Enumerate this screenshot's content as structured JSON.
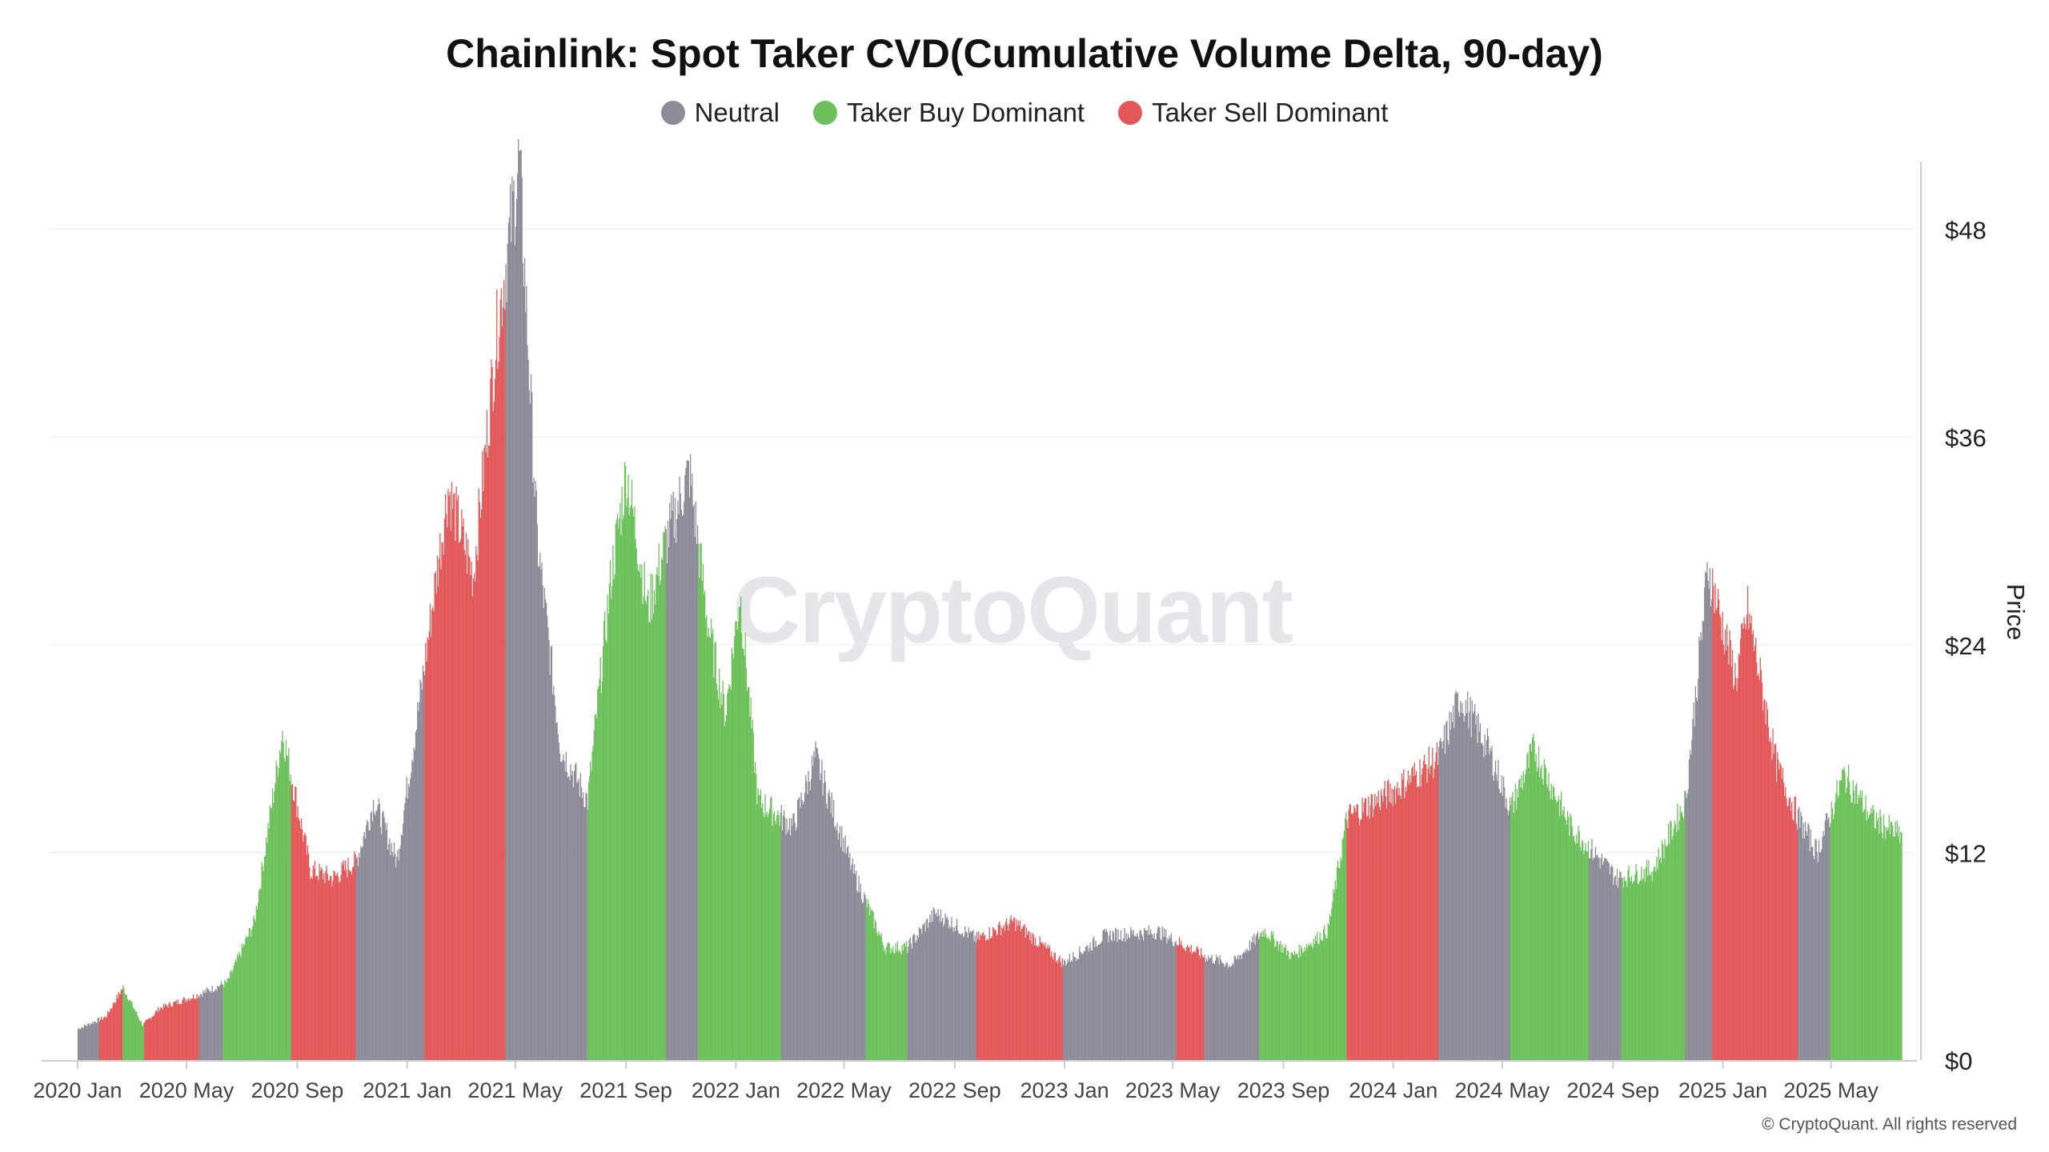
{
  "chart_data": {
    "type": "bar",
    "title": "Chainlink: Spot Taker CVD(Cumulative Volume Delta, 90-day)",
    "legend": [
      {
        "name": "Neutral",
        "color": "#8d8b98"
      },
      {
        "name": "Taker Buy Dominant",
        "color": "#6cc15a"
      },
      {
        "name": "Taker Sell Dominant",
        "color": "#e35858"
      }
    ],
    "legend_position": "top-center",
    "ylabel": "Price",
    "y_axis_side": "right",
    "ylim": [
      0,
      52
    ],
    "yticks": [
      0,
      12,
      24,
      36,
      48
    ],
    "ytick_labels": [
      "$0",
      "$12",
      "$24",
      "$36",
      "$48"
    ],
    "xticks": [
      "2020 Jan",
      "2020 May",
      "2020 Sep",
      "2021 Jan",
      "2021 May",
      "2021 Sep",
      "2022 Jan",
      "2022 May",
      "2022 Sep",
      "2023 Jan",
      "2023 May",
      "2023 Sep",
      "2024 Jan",
      "2024 May",
      "2024 Sep",
      "2025 Jan",
      "2025 May"
    ],
    "x_range_months": [
      "2019-12",
      "2025-07"
    ],
    "grid": true,
    "regimes": [
      {
        "start": "2020-01-01",
        "end": "2020-01-25",
        "state": "neutral"
      },
      {
        "start": "2020-01-25",
        "end": "2020-02-20",
        "state": "sell"
      },
      {
        "start": "2020-02-20",
        "end": "2020-03-15",
        "state": "buy"
      },
      {
        "start": "2020-03-15",
        "end": "2020-04-20",
        "state": "sell"
      },
      {
        "start": "2020-04-20",
        "end": "2020-05-15",
        "state": "sell"
      },
      {
        "start": "2020-05-15",
        "end": "2020-06-10",
        "state": "neutral"
      },
      {
        "start": "2020-06-10",
        "end": "2020-08-25",
        "state": "buy"
      },
      {
        "start": "2020-08-25",
        "end": "2020-11-05",
        "state": "sell"
      },
      {
        "start": "2020-11-05",
        "end": "2021-01-20",
        "state": "neutral"
      },
      {
        "start": "2021-01-20",
        "end": "2021-04-20",
        "state": "sell"
      },
      {
        "start": "2021-04-20",
        "end": "2021-07-20",
        "state": "neutral"
      },
      {
        "start": "2021-07-20",
        "end": "2021-10-15",
        "state": "buy"
      },
      {
        "start": "2021-10-15",
        "end": "2021-11-20",
        "state": "neutral"
      },
      {
        "start": "2021-11-20",
        "end": "2022-01-25",
        "state": "buy"
      },
      {
        "start": "2022-01-25",
        "end": "2022-02-20",
        "state": "buy"
      },
      {
        "start": "2022-02-20",
        "end": "2022-05-25",
        "state": "neutral"
      },
      {
        "start": "2022-05-25",
        "end": "2022-07-10",
        "state": "buy"
      },
      {
        "start": "2022-07-10",
        "end": "2022-09-25",
        "state": "neutral"
      },
      {
        "start": "2022-09-25",
        "end": "2022-12-30",
        "state": "sell"
      },
      {
        "start": "2022-12-30",
        "end": "2023-05-05",
        "state": "neutral"
      },
      {
        "start": "2023-05-05",
        "end": "2023-06-05",
        "state": "sell"
      },
      {
        "start": "2023-06-05",
        "end": "2023-08-05",
        "state": "neutral"
      },
      {
        "start": "2023-08-05",
        "end": "2023-11-10",
        "state": "buy"
      },
      {
        "start": "2023-11-10",
        "end": "2024-02-20",
        "state": "sell"
      },
      {
        "start": "2024-02-20",
        "end": "2024-05-10",
        "state": "neutral"
      },
      {
        "start": "2024-05-10",
        "end": "2024-08-05",
        "state": "buy"
      },
      {
        "start": "2024-08-05",
        "end": "2024-09-10",
        "state": "neutral"
      },
      {
        "start": "2024-09-10",
        "end": "2024-11-20",
        "state": "buy"
      },
      {
        "start": "2024-11-20",
        "end": "2024-12-20",
        "state": "neutral"
      },
      {
        "start": "2024-12-20",
        "end": "2025-03-25",
        "state": "sell"
      },
      {
        "start": "2025-03-25",
        "end": "2025-04-30",
        "state": "neutral"
      },
      {
        "start": "2025-04-30",
        "end": "2025-07-20",
        "state": "buy"
      }
    ],
    "price_path": [
      [
        "2020-01-01",
        1.8
      ],
      [
        "2020-02-01",
        2.5
      ],
      [
        "2020-02-20",
        4.2
      ],
      [
        "2020-03-13",
        2.0
      ],
      [
        "2020-04-01",
        3.0
      ],
      [
        "2020-05-15",
        3.8
      ],
      [
        "2020-06-15",
        4.5
      ],
      [
        "2020-07-15",
        8.0
      ],
      [
        "2020-08-15",
        19.0
      ],
      [
        "2020-09-15",
        11.0
      ],
      [
        "2020-10-10",
        10.5
      ],
      [
        "2020-11-05",
        11.5
      ],
      [
        "2020-11-25",
        15.0
      ],
      [
        "2020-12-20",
        11.5
      ],
      [
        "2021-01-15",
        21.0
      ],
      [
        "2021-02-15",
        33.0
      ],
      [
        "2021-03-15",
        28.0
      ],
      [
        "2021-04-10",
        42.0
      ],
      [
        "2021-05-05",
        52.0
      ],
      [
        "2021-05-25",
        30.0
      ],
      [
        "2021-06-20",
        18.0
      ],
      [
        "2021-07-20",
        15.0
      ],
      [
        "2021-08-15",
        28.0
      ],
      [
        "2021-09-01",
        34.0
      ],
      [
        "2021-09-25",
        26.0
      ],
      [
        "2021-10-15",
        30.0
      ],
      [
        "2021-11-10",
        34.0
      ],
      [
        "2021-12-01",
        25.0
      ],
      [
        "2021-12-20",
        20.0
      ],
      [
        "2022-01-05",
        27.0
      ],
      [
        "2022-01-25",
        15.0
      ],
      [
        "2022-03-05",
        13.5
      ],
      [
        "2022-03-30",
        17.5
      ],
      [
        "2022-05-10",
        11.0
      ],
      [
        "2022-06-15",
        6.5
      ],
      [
        "2022-07-10",
        6.5
      ],
      [
        "2022-08-10",
        8.5
      ],
      [
        "2022-09-25",
        7.0
      ],
      [
        "2022-11-05",
        8.0
      ],
      [
        "2022-12-30",
        5.6
      ],
      [
        "2023-02-15",
        7.2
      ],
      [
        "2023-04-15",
        7.4
      ],
      [
        "2023-06-05",
        6.0
      ],
      [
        "2023-07-05",
        5.5
      ],
      [
        "2023-08-10",
        7.5
      ],
      [
        "2023-09-10",
        6.0
      ],
      [
        "2023-10-20",
        7.5
      ],
      [
        "2023-11-10",
        14.0
      ],
      [
        "2023-12-30",
        15.5
      ],
      [
        "2024-02-20",
        17.5
      ],
      [
        "2024-03-15",
        21.0
      ],
      [
        "2024-04-15",
        18.0
      ],
      [
        "2024-05-10",
        14.5
      ],
      [
        "2024-06-05",
        18.0
      ],
      [
        "2024-07-15",
        13.5
      ],
      [
        "2024-09-05",
        10.5
      ],
      [
        "2024-10-15",
        11.0
      ],
      [
        "2024-11-20",
        15.0
      ],
      [
        "2024-12-15",
        28.5
      ],
      [
        "2025-01-15",
        22.0
      ],
      [
        "2025-01-28",
        26.0
      ],
      [
        "2025-03-01",
        17.0
      ],
      [
        "2025-03-25",
        14.0
      ],
      [
        "2025-04-15",
        12.0
      ],
      [
        "2025-05-15",
        16.5
      ],
      [
        "2025-06-15",
        14.0
      ],
      [
        "2025-07-15",
        13.0
      ]
    ]
  },
  "watermark": "CryptoQuant",
  "copyright": "© CryptoQuant. All rights reserved"
}
